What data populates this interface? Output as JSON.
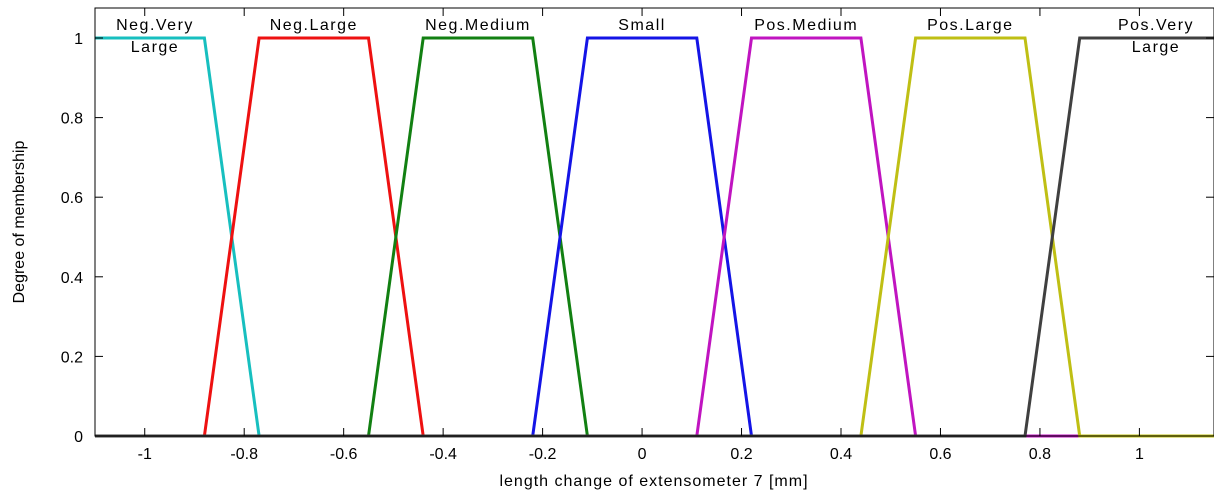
{
  "chart_data": {
    "type": "line",
    "title": "",
    "xlabel": "length change of extensometer 7 [mm]",
    "ylabel": "Degree of membership",
    "xlim": [
      -1.1,
      1.15
    ],
    "ylim": [
      0,
      1.05
    ],
    "xticks": [
      -1,
      -0.8,
      -0.6,
      -0.4,
      -0.2,
      0,
      0.2,
      0.4,
      0.6,
      0.8,
      1
    ],
    "xtick_labels": [
      "-1",
      "-0.8",
      "-0.6",
      "-0.4",
      "-0.2",
      "0",
      "0.2",
      "0.4",
      "0.6",
      "0.8",
      "1"
    ],
    "yticks": [
      0,
      0.2,
      0.4,
      0.6,
      0.8,
      1
    ],
    "ytick_labels": [
      "0",
      "0.2",
      "0.4",
      "0.6",
      "0.8",
      "1"
    ],
    "grid": false,
    "series": [
      {
        "name": "Neg.Very Large",
        "label_lines": [
          "Neg.Very",
          "Large"
        ],
        "color": "#17bfbf",
        "x": [
          -1.1,
          -0.88,
          -0.77,
          1.15
        ],
        "y": [
          1,
          1,
          0,
          0
        ]
      },
      {
        "name": "Neg.Large",
        "label_lines": [
          "Neg.Large"
        ],
        "color": "#ee1111",
        "x": [
          -1.1,
          -0.88,
          -0.77,
          -0.55,
          -0.44,
          1.15
        ],
        "y": [
          0,
          0,
          1,
          1,
          0,
          0
        ]
      },
      {
        "name": "Neg.Medium",
        "label_lines": [
          "Neg.Medium"
        ],
        "color": "#128012",
        "x": [
          -1.1,
          -0.55,
          -0.44,
          -0.22,
          -0.11,
          1.15
        ],
        "y": [
          0,
          0,
          1,
          1,
          0,
          0
        ]
      },
      {
        "name": "Small",
        "label_lines": [
          "Small"
        ],
        "color": "#1414e6",
        "x": [
          -1.1,
          -0.22,
          -0.11,
          0.11,
          0.22,
          1.15
        ],
        "y": [
          0,
          0,
          1,
          1,
          0,
          0
        ]
      },
      {
        "name": "Pos.Medium",
        "label_lines": [
          "Pos.Medium"
        ],
        "color": "#c014c0",
        "x": [
          -1.1,
          0.11,
          0.22,
          0.44,
          0.55,
          1.15
        ],
        "y": [
          0,
          0,
          1,
          1,
          0,
          0
        ]
      },
      {
        "name": "Pos.Large",
        "label_lines": [
          "Pos.Large"
        ],
        "color": "#bfbf14",
        "x": [
          -1.1,
          0.44,
          0.55,
          0.77,
          0.88,
          1.15
        ],
        "y": [
          0,
          0,
          1,
          1,
          0,
          0
        ]
      },
      {
        "name": "Pos.Very Large",
        "label_lines": [
          "Pos.Very",
          "Large"
        ],
        "color": "#404040",
        "x": [
          -1.1,
          0.77,
          0.88,
          1.15
        ],
        "y": [
          0,
          0,
          1,
          1
        ]
      }
    ]
  }
}
